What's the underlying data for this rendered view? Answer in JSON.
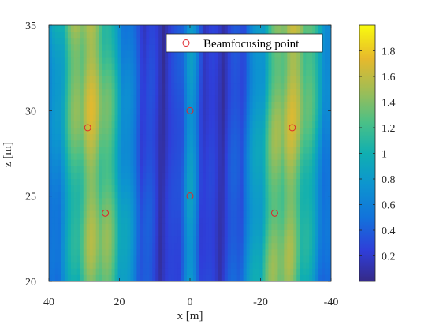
{
  "chart_data": {
    "type": "heatmap",
    "title": "",
    "xlabel": "x [m]",
    "ylabel": "z [m]",
    "xlim": [
      40,
      -40
    ],
    "ylim": [
      20,
      35
    ],
    "x_reversed": true,
    "xticks": [
      40,
      20,
      0,
      -20,
      -40
    ],
    "xtick_labels": [
      "40",
      "20",
      "0",
      "-20",
      "-40"
    ],
    "yticks": [
      20,
      25,
      30,
      35
    ],
    "ytick_labels": [
      "20",
      "25",
      "30",
      "35"
    ],
    "colormap": "parula",
    "clim": [
      0,
      2.0
    ],
    "colorbar_ticks": [
      0.2,
      0.4,
      0.6,
      0.8,
      1,
      1.2,
      1.4,
      1.6,
      1.8
    ],
    "colorbar_tick_labels": [
      "0.2",
      "0.4",
      "0.6",
      "0.8",
      "1",
      "1.2",
      "1.4",
      "1.6",
      "1.8"
    ],
    "legend": {
      "location": "top-right",
      "entries": [
        "Beamfocusing point"
      ]
    },
    "series": [
      {
        "name": "Beamfocusing point",
        "marker": "circle",
        "color": "#e0262c",
        "points": [
          {
            "x": 29,
            "y": 29
          },
          {
            "x": 24,
            "y": 24
          },
          {
            "x": 0,
            "y": 30
          },
          {
            "x": 0,
            "y": 25
          },
          {
            "x": -29,
            "y": 29
          },
          {
            "x": -24,
            "y": 24
          }
        ]
      }
    ],
    "grid": false
  }
}
